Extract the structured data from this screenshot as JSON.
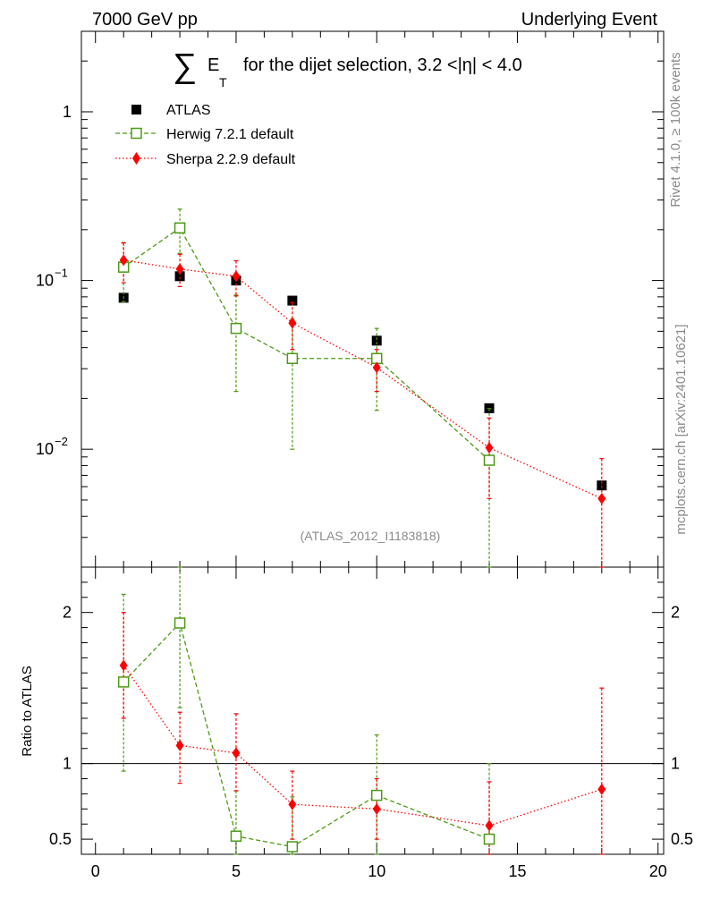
{
  "header": {
    "left": "7000 GeV pp",
    "right": "Underlying Event"
  },
  "side_labels": {
    "rivet": "Rivet 4.1.0, ≥ 100k events",
    "mcplots": "mcplots.cern.ch [arXiv:2401.10621]"
  },
  "chart_data": {
    "type": "scatter",
    "title": {
      "symbol": "∑",
      "e": "E",
      "t": "T",
      "text": "for the dijet selection, 3.2 <|η| < 4.0"
    },
    "watermark": "(ATLAS_2012_I1183818)",
    "xlim": [
      -0.5,
      20.2
    ],
    "ylim_top": [
      0.002,
      3.0
    ],
    "yscale_top": "log",
    "ylim_ratio": [
      0.4,
      2.3
    ],
    "ylabel_ratio": "Ratio to ATLAS",
    "x_ticks": [
      0,
      5,
      10,
      15,
      20
    ],
    "x_tick_labels": [
      "0",
      "5",
      "10",
      "15",
      "20"
    ],
    "top_y_tick_labels": [
      {
        "value": 1,
        "label": "1"
      },
      {
        "value": 0.1,
        "label": "10",
        "exp": "−1"
      },
      {
        "value": 0.01,
        "label": "10",
        "exp": "−2"
      }
    ],
    "ratio_y_tick_labels": [
      {
        "value": 2,
        "label": "2"
      },
      {
        "value": 1,
        "label": "1"
      },
      {
        "value": 0.5,
        "label": "0.5"
      }
    ],
    "legend_position": "top-left",
    "series": [
      {
        "name": "ATLAS",
        "color": "#000000",
        "marker": "filled-square",
        "line": "none",
        "x": [
          1,
          3,
          5,
          7,
          10,
          14,
          18
        ],
        "y": [
          0.079,
          0.106,
          0.1,
          0.076,
          0.044,
          0.0175,
          0.0061
        ],
        "err": [
          0.004,
          0.004,
          0.004,
          0.003,
          0.002,
          0.001,
          0.0004
        ]
      },
      {
        "name": "Herwig 7.2.1 default",
        "color": "#4c9a14",
        "marker": "open-square",
        "line": "dashed",
        "x": [
          1,
          3,
          5,
          7,
          10,
          14
        ],
        "y": [
          0.12,
          0.205,
          0.052,
          0.0345,
          0.0345,
          0.0086
        ],
        "err_low": [
          0.075,
          0.145,
          0.022,
          0.01,
          0.017,
          0.0017
        ],
        "err_high": [
          0.168,
          0.265,
          0.082,
          0.059,
          0.052,
          0.0174
        ],
        "ratio": [
          1.54,
          1.93,
          0.52,
          0.45,
          0.79,
          0.5
        ],
        "ratio_low": [
          0.95,
          1.37,
          0.2,
          0.15,
          0.4,
          0.1
        ],
        "ratio_high": [
          2.12,
          2.5,
          0.82,
          0.78,
          1.19,
          1.0
        ]
      },
      {
        "name": "Sherpa 2.2.9 default",
        "color": "#ff0000",
        "marker": "filled-diamond",
        "line": "dotted",
        "x": [
          1,
          3,
          5,
          7,
          10,
          14,
          18
        ],
        "y": [
          0.132,
          0.117,
          0.106,
          0.056,
          0.0305,
          0.0102,
          0.0051
        ],
        "err_low": [
          0.097,
          0.092,
          0.081,
          0.039,
          0.022,
          0.0051,
          0.0005
        ],
        "err_high": [
          0.167,
          0.143,
          0.131,
          0.074,
          0.039,
          0.0153,
          0.0088
        ],
        "ratio": [
          1.65,
          1.12,
          1.07,
          0.73,
          0.7,
          0.59,
          0.83
        ],
        "ratio_low": [
          1.3,
          0.87,
          0.82,
          0.5,
          0.5,
          0.3,
          0.1
        ],
        "ratio_high": [
          2.0,
          1.34,
          1.33,
          0.95,
          0.9,
          0.88,
          1.5
        ]
      }
    ]
  }
}
